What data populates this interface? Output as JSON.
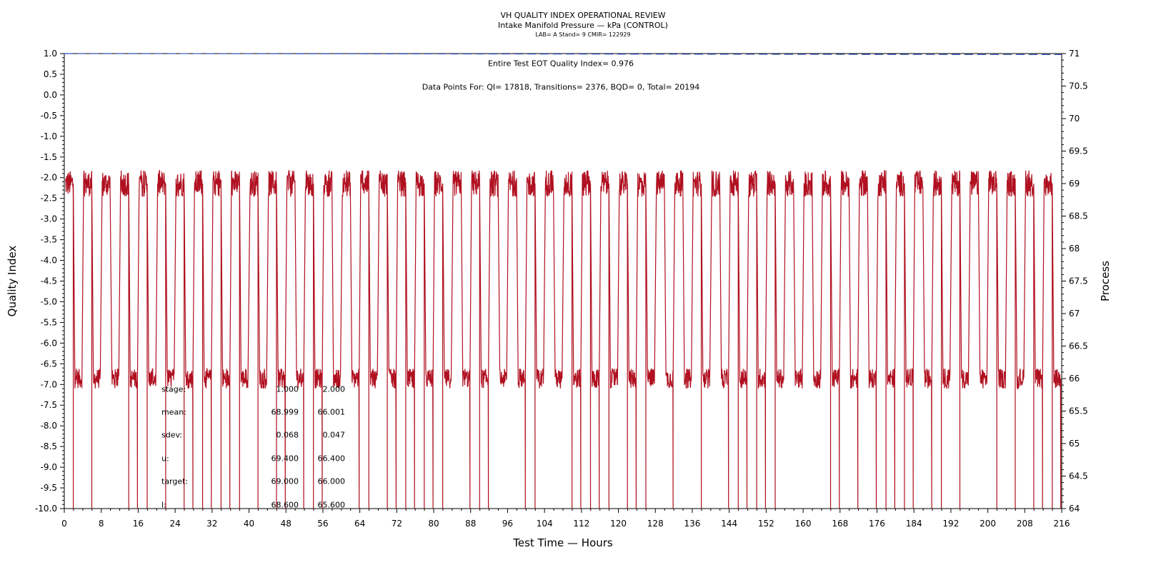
{
  "chart_data": {
    "type": "line",
    "title": "VH QUALITY INDEX OPERATIONAL REVIEW",
    "subtitle": "Intake Manifold Pressure — kPa (CONTROL)",
    "subtitle2": "LAB= A Stand= 9 CMIR= 122929",
    "xlabel": "Test Time — Hours",
    "ylabel": "Quality Index",
    "y2label": "Process",
    "xlim": [
      0,
      216
    ],
    "ylim": [
      -10,
      1
    ],
    "y2lim": [
      64,
      71
    ],
    "x_ticks": [
      0,
      8,
      16,
      24,
      32,
      40,
      48,
      56,
      64,
      72,
      80,
      88,
      96,
      104,
      112,
      120,
      128,
      136,
      144,
      152,
      160,
      168,
      176,
      184,
      192,
      200,
      208,
      216
    ],
    "y_ticks": [
      "1.0",
      "0.5",
      "0.0",
      "-0.5",
      "-1.0",
      "-1.5",
      "-2.0",
      "-2.5",
      "-3.0",
      "-3.5",
      "-4.0",
      "-4.5",
      "-5.0",
      "-5.5",
      "-6.0",
      "-6.5",
      "-7.0",
      "-7.5",
      "-8.0",
      "-8.5",
      "-9.0",
      "-9.5",
      "-10.0"
    ],
    "y2_ticks": [
      "71",
      "70.5",
      "70",
      "69.5",
      "69",
      "68.5",
      "68",
      "67.5",
      "67",
      "66.5",
      "66",
      "65.5",
      "65",
      "64.5",
      "64"
    ],
    "annotation_qi": "Entire Test EOT Quality Index=   0.976",
    "annotation_points": "Data Points For: QI= 17818, Transitions=  2376, BQD=     0, Total= 20194",
    "stats_table": [
      {
        "label": "stage:",
        "v1": "1.000",
        "v2": "2.000"
      },
      {
        "label": "mean:",
        "v1": "68.999",
        "v2": "66.001"
      },
      {
        "label": "sdev:",
        "v1": "0.068",
        "v2": "0.047"
      },
      {
        "label": "u:",
        "v1": "69.400",
        "v2": "66.400"
      },
      {
        "label": "target:",
        "v1": "69.000",
        "v2": "66.000"
      },
      {
        "label": "l:",
        "v1": "68.600",
        "v2": "65.600"
      }
    ],
    "series": [
      {
        "color": "#b01020",
        "dash": false,
        "axis": "right",
        "cycle_hours": 4.0,
        "high_hours": 1.75,
        "high_level": 69.0,
        "low_level": 66.0,
        "high_band": [
          68.8,
          69.2
        ],
        "low_band": [
          65.85,
          66.15
        ],
        "dip_min": 64.0
      },
      {
        "color": "#3050c0",
        "dash": true,
        "axis": "left",
        "x": [
          0,
          18,
          216
        ],
        "y": [
          1.0,
          1.0,
          0.976
        ]
      }
    ],
    "grid": false
  }
}
